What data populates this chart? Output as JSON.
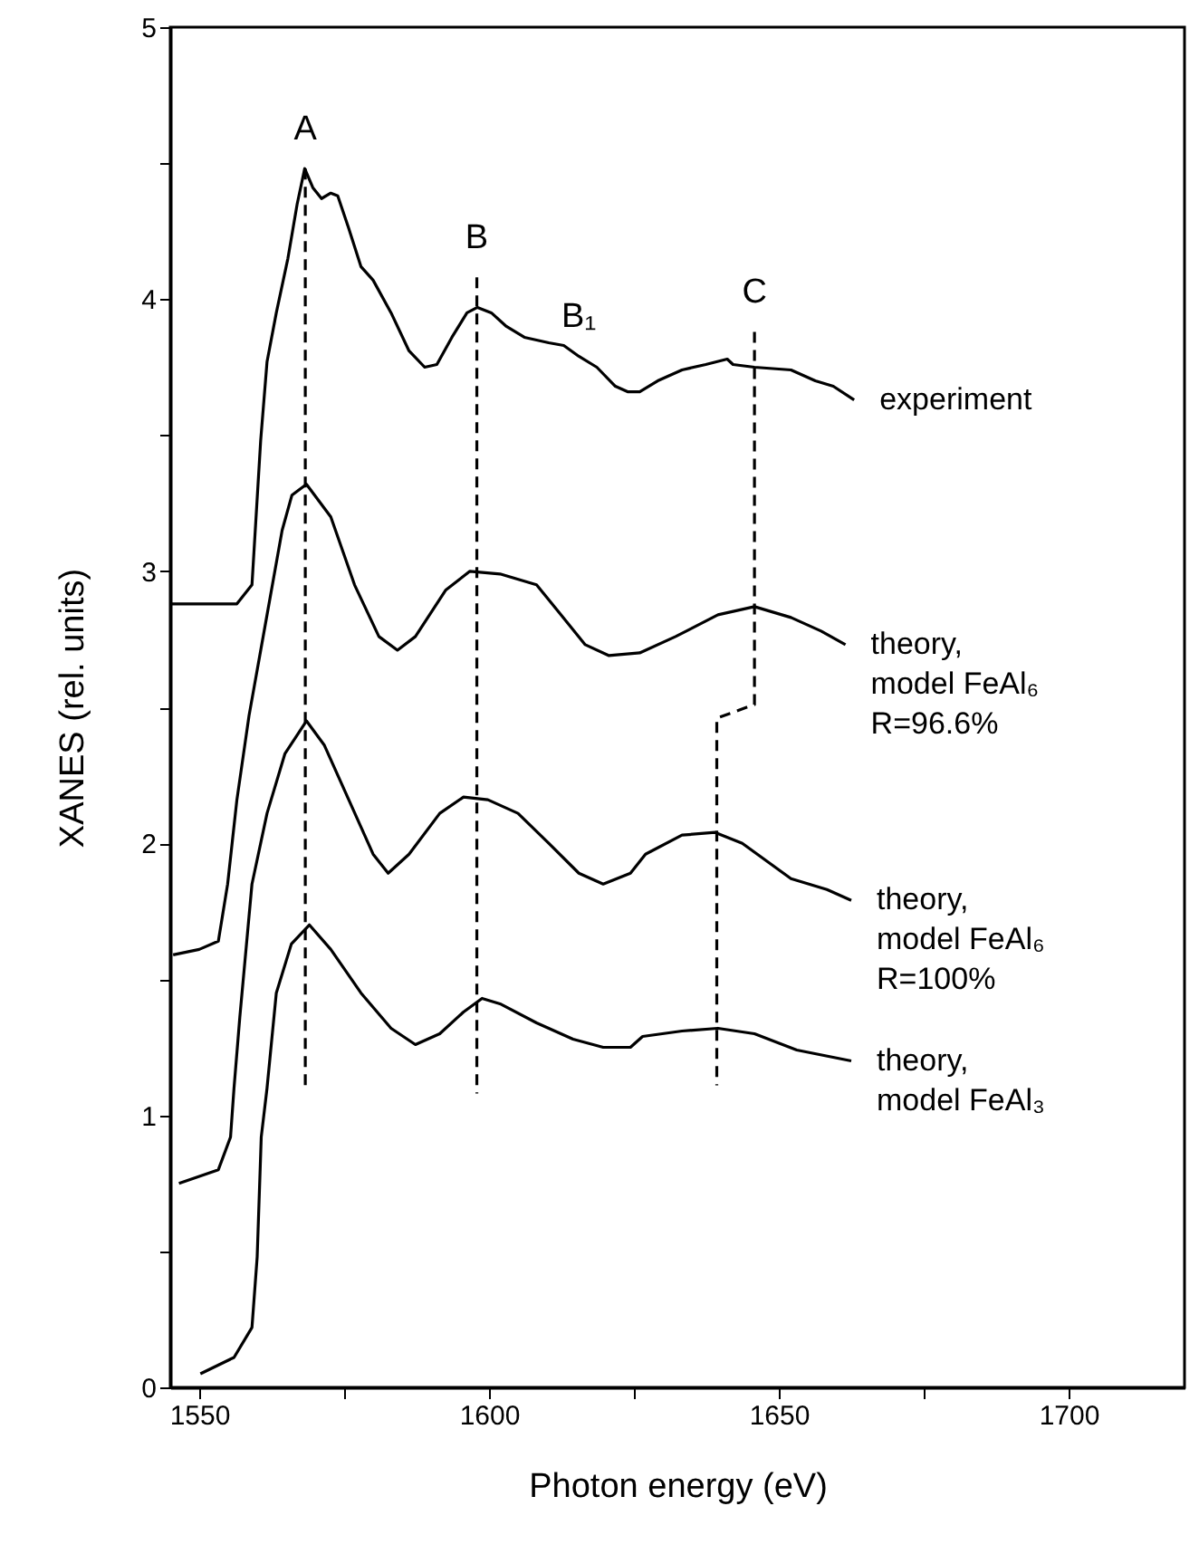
{
  "chart_data": {
    "type": "line",
    "xlabel": "Photon energy (eV)",
    "ylabel": "XANES (rel. units)",
    "xlim": [
      1545,
      1720
    ],
    "ylim": [
      0,
      5
    ],
    "xticks": [
      1550,
      {
        "value": 1575,
        "label": null
      },
      1600,
      {
        "value": 1625,
        "label": null
      },
      1650,
      {
        "value": 1675,
        "label": null
      },
      1700
    ],
    "yticks": [
      0,
      {
        "value": 0.5,
        "label": null
      },
      1,
      {
        "value": 1.5,
        "label": null
      },
      2,
      {
        "value": 2.5,
        "label": null
      },
      3,
      {
        "value": 3.5,
        "label": null
      },
      4,
      {
        "value": 4.5,
        "label": null
      },
      5
    ],
    "grid": false,
    "marker": "none",
    "series": [
      {
        "name": "experiment",
        "color": "#000000",
        "line_style": "solid",
        "x": [
          1545,
          1556.5,
          1559.1,
          1560.6,
          1561.7,
          1563.3,
          1565.3,
          1566.9,
          1568.2,
          1569.6,
          1571.1,
          1572.7,
          1573.9,
          1575.8,
          1577.9,
          1580,
          1583.1,
          1586.2,
          1588.9,
          1591,
          1593.6,
          1596.2,
          1598,
          1600.4,
          1603,
          1606.1,
          1610.3,
          1612.9,
          1615.5,
          1618.6,
          1621.8,
          1623.9,
          1626,
          1629.1,
          1633.3,
          1637.4,
          1641.1,
          1642.1,
          1645.8,
          1652.1,
          1656.3,
          1659.4,
          1663
        ],
        "values": [
          2.88,
          2.88,
          2.95,
          3.48,
          3.77,
          3.95,
          4.15,
          4.35,
          4.48,
          4.41,
          4.37,
          4.39,
          4.38,
          4.26,
          4.12,
          4.07,
          3.95,
          3.81,
          3.75,
          3.76,
          3.86,
          3.95,
          3.97,
          3.95,
          3.9,
          3.86,
          3.84,
          3.83,
          3.79,
          3.75,
          3.68,
          3.66,
          3.66,
          3.7,
          3.74,
          3.76,
          3.78,
          3.76,
          3.75,
          3.74,
          3.7,
          3.68,
          3.63
        ]
      },
      {
        "name": "theory,\nmodel FeAl₆\nR=96.6%",
        "color": "#000000",
        "line_style": "solid",
        "x": [
          1545.5,
          1550,
          1553.3,
          1554.9,
          1556.5,
          1558.6,
          1561.2,
          1564.3,
          1566,
          1568.5,
          1572.7,
          1576.8,
          1581,
          1584.2,
          1587.3,
          1592.5,
          1596.7,
          1601.9,
          1608.2,
          1612.4,
          1616.6,
          1620.7,
          1626,
          1632.2,
          1639.5,
          1645.8,
          1652.1,
          1657.3,
          1661.5
        ],
        "values": [
          1.59,
          1.61,
          1.64,
          1.85,
          2.16,
          2.47,
          2.78,
          3.15,
          3.28,
          3.32,
          3.2,
          2.95,
          2.76,
          2.71,
          2.76,
          2.93,
          3.0,
          2.99,
          2.95,
          2.84,
          2.73,
          2.69,
          2.7,
          2.76,
          2.84,
          2.87,
          2.83,
          2.78,
          2.73
        ]
      },
      {
        "name": "theory,\nmodel FeAl₆\nR=100%",
        "color": "#000000",
        "line_style": "solid",
        "x": [
          1546.5,
          1553.3,
          1555.4,
          1556,
          1557,
          1559.1,
          1561.7,
          1564.8,
          1568.5,
          1571.6,
          1575.8,
          1580,
          1582.6,
          1586.2,
          1591.5,
          1595.6,
          1599.8,
          1605,
          1610.3,
          1615.5,
          1619.7,
          1624.4,
          1627,
          1633.3,
          1639,
          1643.7,
          1652.1,
          1658.3,
          1662.5
        ],
        "values": [
          0.75,
          0.8,
          0.92,
          1.1,
          1.36,
          1.85,
          2.11,
          2.33,
          2.45,
          2.36,
          2.16,
          1.96,
          1.89,
          1.96,
          2.11,
          2.17,
          2.16,
          2.11,
          2.0,
          1.89,
          1.85,
          1.89,
          1.96,
          2.03,
          2.04,
          2.0,
          1.87,
          1.83,
          1.79
        ]
      },
      {
        "name": "theory,\nmodel FeAl₃",
        "color": "#000000",
        "line_style": "solid",
        "x": [
          1550.2,
          1556,
          1559.1,
          1560,
          1560.7,
          1561.7,
          1563.3,
          1565.9,
          1569,
          1572.7,
          1577.9,
          1583.1,
          1587.3,
          1591.5,
          1595.6,
          1598.8,
          1601.9,
          1608.2,
          1614.5,
          1619.7,
          1624.4,
          1626.5,
          1633.3,
          1639.5,
          1645.8,
          1653.1,
          1662.5
        ],
        "values": [
          0.05,
          0.11,
          0.22,
          0.48,
          0.92,
          1.1,
          1.45,
          1.63,
          1.7,
          1.61,
          1.45,
          1.32,
          1.26,
          1.3,
          1.38,
          1.43,
          1.41,
          1.34,
          1.28,
          1.25,
          1.25,
          1.29,
          1.31,
          1.32,
          1.3,
          1.24,
          1.2
        ]
      },
      {
        "color": "#000000",
        "line_style": "dashed",
        "x": [
          1568.3,
          1568.3
        ],
        "values": [
          4.48,
          1.09
        ]
      },
      {
        "color": "#000000",
        "line_style": "dashed",
        "x": [
          1597.9,
          1597.9
        ],
        "values": [
          4.08,
          1.08
        ]
      },
      {
        "color": "#000000",
        "line_style": "dashed",
        "x": [
          1645.8,
          1645.8,
          1639.3,
          1639.3
        ],
        "values": [
          3.88,
          2.51,
          2.46,
          1.11
        ]
      }
    ],
    "annotations": [
      {
        "text": "A",
        "x": 1568.3,
        "y": 4.48
      },
      {
        "text": "B",
        "x": 1597.9,
        "y": 4.08
      },
      {
        "text": "B₁",
        "x": 1615.5,
        "y": 3.79
      },
      {
        "text": "C",
        "x": 1645.8,
        "y": 3.88
      }
    ]
  }
}
